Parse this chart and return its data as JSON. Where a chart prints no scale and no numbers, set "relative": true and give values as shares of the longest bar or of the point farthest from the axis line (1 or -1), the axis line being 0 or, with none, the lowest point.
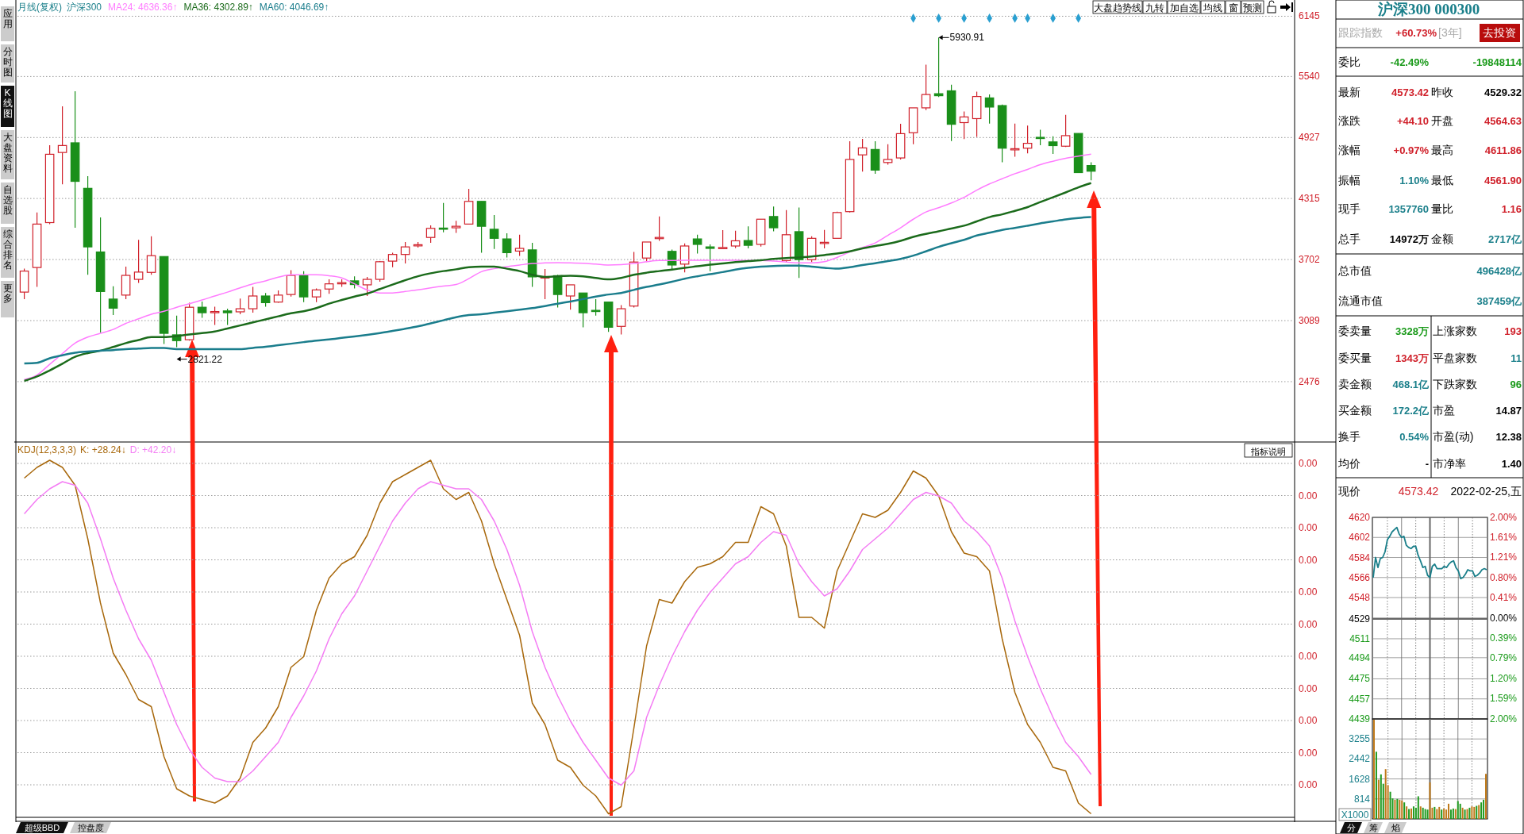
{
  "chart_data": [
    {
      "type": "candlestick",
      "title": "月线(复权)",
      "subtitle": "沪深300",
      "legend": "top left",
      "grid": "y",
      "categories": [
        null,
        null,
        null,
        null,
        null,
        null,
        null,
        null,
        null,
        null,
        null,
        null,
        null,
        null,
        null,
        null,
        null,
        null,
        null,
        null,
        null,
        null,
        null,
        null,
        null,
        null,
        null,
        null,
        null,
        null,
        null,
        null,
        null,
        null,
        null,
        null,
        null,
        null,
        null,
        null,
        null,
        null,
        null,
        null,
        null,
        null,
        null,
        null,
        null,
        null,
        null,
        null,
        null,
        null,
        null,
        null,
        null,
        null,
        null,
        null,
        null,
        null,
        null,
        null,
        null,
        null,
        null,
        null,
        null,
        null,
        null,
        null,
        null,
        null,
        null,
        null,
        null,
        null,
        null,
        null,
        null,
        null,
        null,
        null,
        null
      ],
      "ohlc": [
        [
          3375,
          3610,
          3305,
          3586
        ],
        [
          3622,
          4174,
          3427,
          4058
        ],
        [
          4073,
          4850,
          4058,
          4759
        ],
        [
          4777,
          5240,
          4457,
          4847
        ],
        [
          4874,
          5392,
          4021,
          4487
        ],
        [
          4417,
          4539,
          3549,
          3829
        ],
        [
          3778,
          4125,
          2970,
          3381
        ],
        [
          3305,
          3433,
          3144,
          3214
        ],
        [
          3345,
          3631,
          3305,
          3543
        ],
        [
          3503,
          3899,
          3467,
          3576
        ],
        [
          3573,
          3936,
          3549,
          3741
        ],
        [
          3732,
          3732,
          2854,
          2961
        ],
        [
          2946,
          3138,
          2821.22,
          2888
        ],
        [
          2897,
          3269,
          2888,
          3223
        ],
        [
          3223,
          3281,
          3116,
          3168
        ],
        [
          3174,
          3229,
          3046,
          3180
        ],
        [
          3186,
          3208,
          3046,
          3168
        ],
        [
          3177,
          3311,
          3153,
          3208
        ],
        [
          3208,
          3427,
          3168,
          3336
        ],
        [
          3336,
          3366,
          3229,
          3269
        ],
        [
          3275,
          3391,
          3269,
          3345
        ],
        [
          3351,
          3595,
          3330,
          3543
        ],
        [
          3540,
          3586,
          3275,
          3327
        ],
        [
          3327,
          3412,
          3275,
          3397
        ],
        [
          3406,
          3503,
          3357,
          3458
        ],
        [
          3464,
          3503,
          3427,
          3470
        ],
        [
          3488,
          3534,
          3412,
          3451
        ],
        [
          3448,
          3528,
          3336,
          3503
        ],
        [
          3503,
          3686,
          3479,
          3680
        ],
        [
          3686,
          3771,
          3625,
          3753
        ],
        [
          3753,
          3878,
          3662,
          3829
        ],
        [
          3848,
          3878,
          3823,
          3851
        ],
        [
          3924,
          4046,
          3869,
          4015
        ],
        [
          4018,
          4271,
          3976,
          4012
        ],
        [
          4021,
          4091,
          3970,
          4036
        ],
        [
          4058,
          4411,
          4058,
          4286
        ],
        [
          4286,
          4286,
          3771,
          4036
        ],
        [
          4006,
          4149,
          3808,
          3915
        ],
        [
          3909,
          3966,
          3723,
          3771
        ],
        [
          3787,
          3951,
          3738,
          3814
        ],
        [
          3799,
          3869,
          3427,
          3528
        ],
        [
          3522,
          3607,
          3305,
          3528
        ],
        [
          3540,
          3549,
          3220,
          3351
        ],
        [
          3336,
          3448,
          3199,
          3448
        ],
        [
          3366,
          3366,
          3022,
          3168
        ],
        [
          3192,
          3305,
          3138,
          3186
        ],
        [
          3275,
          3275,
          2976,
          3022
        ],
        [
          3031,
          3244,
          2949,
          3208
        ],
        [
          3235,
          3778,
          3220,
          3677
        ],
        [
          3717,
          3878,
          3677,
          3878
        ],
        [
          3918,
          4134,
          3890,
          3924
        ],
        [
          3784,
          3802,
          3595,
          3647
        ],
        [
          3656,
          3863,
          3573,
          3838
        ],
        [
          3909,
          3951,
          3762,
          3854
        ],
        [
          3829,
          3854,
          3586,
          3814
        ],
        [
          3817,
          3997,
          3814,
          3823
        ],
        [
          3838,
          3991,
          3817,
          3890
        ],
        [
          3893,
          4036,
          3814,
          3845
        ],
        [
          3854,
          4107,
          3833,
          4107
        ],
        [
          4134,
          4235,
          3985,
          4021
        ],
        [
          3692,
          4198,
          3671,
          3951
        ],
        [
          3982,
          4225,
          3518,
          3701
        ],
        [
          3701,
          3936,
          3677,
          3915
        ],
        [
          3872,
          4000,
          3814,
          3875
        ],
        [
          3915,
          4183,
          3915,
          4174
        ],
        [
          4183,
          4890,
          4174,
          4707
        ],
        [
          4753,
          4914,
          4585,
          4823
        ],
        [
          4807,
          4890,
          4564,
          4600
        ],
        [
          4676,
          4859,
          4655,
          4707
        ],
        [
          4722,
          5066,
          4707,
          4966
        ],
        [
          4975,
          5225,
          4859,
          5225
        ],
        [
          5225,
          5658,
          5202,
          5359
        ],
        [
          5367,
          5930.91,
          5333,
          5347
        ],
        [
          5396,
          5458,
          4891,
          5060
        ],
        [
          5077,
          5188,
          4911,
          5134
        ],
        [
          5117,
          5387,
          4934,
          5339
        ],
        [
          5325,
          5359,
          5068,
          5233
        ],
        [
          5248,
          5259,
          4678,
          4820
        ],
        [
          4809,
          5068,
          4735,
          4815
        ],
        [
          4820,
          5048,
          4769,
          4869
        ],
        [
          4929,
          5005,
          4849,
          4926
        ],
        [
          4883,
          4940,
          4763,
          4846
        ],
        [
          4840,
          5154,
          4832,
          4946
        ],
        [
          4968,
          4968,
          4575,
          4575
        ],
        [
          4646,
          4678,
          4498,
          4589
        ]
      ],
      "series": [
        {
          "type": "line",
          "name": "MA24: 4636.36↑",
          "color": "#ff7cff",
          "values": [
            2498,
            2543,
            2650,
            2757,
            2863,
            2924,
            2961,
            3000,
            3061,
            3107,
            3153,
            3183,
            3223,
            3259,
            3296,
            3336,
            3375,
            3418,
            3458,
            3488,
            3525,
            3549,
            3549,
            3549,
            3540,
            3518,
            3458,
            3397,
            3366,
            3366,
            3381,
            3397,
            3418,
            3436,
            3451,
            3510,
            3580,
            3610,
            3631,
            3647,
            3662,
            3668,
            3671,
            3668,
            3665,
            3656,
            3647,
            3650,
            3662,
            3680,
            3692,
            3692,
            3695,
            3695,
            3695,
            3695,
            3695,
            3692,
            3692,
            3686,
            3677,
            3668,
            3668,
            3680,
            3723,
            3778,
            3823,
            3869,
            3945,
            4021,
            4107,
            4180,
            4222,
            4270,
            4327,
            4399,
            4461,
            4513,
            4564,
            4607,
            4655,
            4689,
            4718,
            4740,
            4760
          ]
        },
        {
          "type": "line",
          "name": "MA36: 4302.89↑",
          "color": "#1b6b1b",
          "values": [
            2483,
            2528,
            2589,
            2656,
            2726,
            2763,
            2787,
            2824,
            2863,
            2894,
            2924,
            2924,
            2933,
            2949,
            2964,
            2979,
            3010,
            3040,
            3071,
            3101,
            3132,
            3162,
            3183,
            3214,
            3259,
            3296,
            3330,
            3360,
            3406,
            3451,
            3494,
            3534,
            3564,
            3586,
            3604,
            3625,
            3631,
            3631,
            3610,
            3586,
            3549,
            3528,
            3534,
            3540,
            3534,
            3518,
            3503,
            3518,
            3549,
            3570,
            3586,
            3601,
            3619,
            3634,
            3650,
            3662,
            3677,
            3686,
            3695,
            3708,
            3717,
            3723,
            3732,
            3747,
            3762,
            3784,
            3814,
            3838,
            3860,
            3890,
            3930,
            3960,
            3985,
            4014,
            4042,
            4085,
            4128,
            4156,
            4191,
            4228,
            4279,
            4327,
            4376,
            4427,
            4470
          ]
        },
        {
          "type": "line",
          "name": "MA60: 4046.69↑",
          "color": "#1a7d8c",
          "values": [
            2659,
            2665,
            2711,
            2741,
            2766,
            2778,
            2787,
            2793,
            2802,
            2808,
            2815,
            2815,
            2802,
            2802,
            2802,
            2802,
            2802,
            2802,
            2815,
            2827,
            2842,
            2857,
            2873,
            2888,
            2900,
            2915,
            2930,
            2946,
            2964,
            2985,
            3007,
            3031,
            3061,
            3092,
            3123,
            3145,
            3153,
            3168,
            3183,
            3199,
            3214,
            3235,
            3259,
            3281,
            3305,
            3330,
            3351,
            3366,
            3397,
            3427,
            3451,
            3479,
            3510,
            3534,
            3555,
            3576,
            3601,
            3619,
            3631,
            3637,
            3640,
            3640,
            3631,
            3619,
            3610,
            3625,
            3647,
            3665,
            3686,
            3708,
            3741,
            3784,
            3829,
            3866,
            3900,
            3943,
            3971,
            4000,
            4020,
            4042,
            4065,
            4085,
            4105,
            4119,
            4128
          ]
        },
        {
          "type": "scatter",
          "marker": "diamond",
          "color": "#2a9fd0",
          "values": [
            null,
            null,
            null,
            null,
            null,
            null,
            null,
            null,
            null,
            null,
            null,
            null,
            null,
            null,
            null,
            null,
            null,
            null,
            null,
            null,
            null,
            null,
            null,
            null,
            null,
            null,
            null,
            null,
            null,
            null,
            null,
            null,
            null,
            null,
            null,
            null,
            null,
            null,
            null,
            null,
            null,
            null,
            null,
            null,
            null,
            null,
            null,
            null,
            null,
            null,
            null,
            null,
            null,
            null,
            null,
            null,
            null,
            null,
            null,
            null,
            null,
            null,
            null,
            null,
            null,
            null,
            null,
            null,
            null,
            null,
            6125,
            null,
            6125,
            null,
            6125,
            null,
            6125,
            null,
            6125,
            6125,
            null,
            6125,
            null,
            6125,
            null
          ]
        }
      ],
      "ylim": [
        1870,
        6300
      ],
      "yticks": [
        6145,
        5540,
        4927,
        4315,
        3702,
        3089,
        2476
      ],
      "annotations": [
        "2821.22",
        "5930.91"
      ]
    },
    {
      "type": "line",
      "title": "KDJ(12,3,3,3)",
      "legend": "top left",
      "relative": true,
      "grid": true,
      "categories": [
        null,
        null,
        null,
        null,
        null,
        null,
        null,
        null,
        null,
        null,
        null,
        null,
        null,
        null,
        null,
        null,
        null,
        null,
        null,
        null,
        null,
        null,
        null,
        null,
        null,
        null,
        null,
        null,
        null,
        null,
        null,
        null,
        null,
        null,
        null,
        null,
        null,
        null,
        null,
        null,
        null,
        null,
        null,
        null,
        null,
        null,
        null,
        null,
        null,
        null,
        null,
        null,
        null,
        null,
        null,
        null,
        null,
        null,
        null,
        null,
        null,
        null,
        null,
        null,
        null,
        null,
        null,
        null,
        null,
        null,
        null,
        null,
        null,
        null,
        null,
        null,
        null,
        null,
        null,
        null,
        null,
        null,
        null,
        null,
        null
      ],
      "series": [
        {
          "name": "K: +28.24↓",
          "color": "#a8680c",
          "values": [
            0.95,
            0.98,
            1.0,
            0.98,
            0.93,
            0.78,
            0.6,
            0.46,
            0.4,
            0.33,
            0.31,
            0.17,
            0.08,
            0.06,
            0.05,
            0.04,
            0.06,
            0.11,
            0.21,
            0.25,
            0.31,
            0.42,
            0.45,
            0.58,
            0.67,
            0.71,
            0.73,
            0.79,
            0.88,
            0.94,
            0.96,
            0.98,
            1.0,
            0.92,
            0.89,
            0.91,
            0.83,
            0.71,
            0.61,
            0.51,
            0.32,
            0.26,
            0.16,
            0.14,
            0.09,
            0.06,
            0.01,
            0.03,
            0.25,
            0.48,
            0.61,
            0.6,
            0.66,
            0.7,
            0.71,
            0.73,
            0.77,
            0.77,
            0.87,
            0.85,
            0.76,
            0.56,
            0.56,
            0.53,
            0.69,
            0.77,
            0.85,
            0.84,
            0.86,
            0.91,
            0.97,
            0.95,
            0.9,
            0.8,
            0.74,
            0.73,
            0.69,
            0.5,
            0.35,
            0.26,
            0.21,
            0.14,
            0.13,
            0.04,
            0.01
          ]
        },
        {
          "name": "D: +42.20↓",
          "color": "#f47cf4",
          "values": [
            0.85,
            0.89,
            0.92,
            0.94,
            0.93,
            0.88,
            0.78,
            0.67,
            0.58,
            0.5,
            0.44,
            0.35,
            0.26,
            0.19,
            0.14,
            0.11,
            0.1,
            0.1,
            0.13,
            0.17,
            0.21,
            0.28,
            0.34,
            0.41,
            0.5,
            0.57,
            0.62,
            0.69,
            0.76,
            0.83,
            0.88,
            0.92,
            0.94,
            0.93,
            0.92,
            0.92,
            0.89,
            0.83,
            0.75,
            0.65,
            0.52,
            0.42,
            0.34,
            0.27,
            0.21,
            0.16,
            0.11,
            0.09,
            0.13,
            0.28,
            0.37,
            0.45,
            0.52,
            0.58,
            0.63,
            0.67,
            0.71,
            0.73,
            0.77,
            0.8,
            0.79,
            0.71,
            0.66,
            0.62,
            0.64,
            0.69,
            0.75,
            0.78,
            0.81,
            0.85,
            0.89,
            0.91,
            0.9,
            0.88,
            0.83,
            0.8,
            0.76,
            0.67,
            0.55,
            0.45,
            0.36,
            0.28,
            0.21,
            0.17,
            0.12
          ]
        }
      ],
      "annotations": [
        "0.00",
        "0.00",
        "0.00",
        "0.00",
        "0.00",
        "0.00",
        "0.00",
        "0.00",
        "0.00",
        "0.00",
        "0.00"
      ]
    },
    {
      "type": "other",
      "title": "沪深300 000300",
      "annotations": [
        "跟踪指数",
        "+60.73%",
        "[3年]",
        "去投资",
        "委比",
        "-42.49%",
        "-19848114",
        "最新",
        "4573.42",
        "昨收",
        "4529.32",
        "涨跌",
        "+44.10",
        "开盘",
        "4564.63",
        "涨幅",
        "+0.97%",
        "最高",
        "4611.86",
        "振幅",
        "1.10%",
        "最低",
        "4561.90",
        "现手",
        "1357760",
        "量比",
        "1.16",
        "总手",
        "14972万",
        "金额",
        "2717亿",
        "总市值",
        "496428亿",
        "流通市值",
        "387459亿",
        "委卖量",
        "3328万",
        "上涨家数",
        "193",
        "委买量",
        "1343万",
        "平盘家数",
        "11",
        "卖金额",
        "468.1亿",
        "下跌家数",
        "96",
        "买金额",
        "172.2亿",
        "市盈",
        "14.87",
        "换手",
        "0.54%",
        "市盈(动)",
        "12.38",
        "均价",
        "-",
        "市净率",
        "1.40",
        "现价",
        "4573.42",
        "2022-02-25,五"
      ]
    },
    {
      "type": "line",
      "grid": true,
      "categories": [
        null,
        null,
        null,
        null,
        null,
        null,
        null,
        null,
        null,
        null,
        null,
        null,
        null,
        null,
        null,
        null,
        null,
        null,
        null,
        null,
        null,
        null,
        null,
        null,
        null,
        null,
        null,
        null,
        null,
        null,
        null,
        null,
        null,
        null,
        null,
        null,
        null,
        null,
        null,
        null,
        null,
        null,
        null,
        null,
        null,
        null,
        null,
        null,
        null
      ],
      "ylim": [
        4439,
        4620
      ],
      "yticks": [
        4620,
        4602,
        4584,
        4566,
        4548,
        4529,
        4511,
        4494,
        4475,
        4457,
        4439
      ],
      "y2lim": [
        -2,
        2
      ],
      "y2ticks": [
        {
          "value": 2,
          "label": "2.00%"
        },
        {
          "value": 1.61,
          "label": "1.61%"
        },
        {
          "value": 1.21,
          "label": "1.21%"
        },
        {
          "value": 0.8,
          "label": "0.80%"
        },
        {
          "value": 0.41,
          "label": "0.41%"
        },
        {
          "value": 0,
          "label": "0.00%"
        },
        {
          "value": -0.39,
          "label": "0.39%"
        },
        {
          "value": -0.79,
          "label": "0.79%"
        },
        {
          "value": -1.2,
          "label": "1.20%"
        },
        {
          "value": -1.59,
          "label": "1.59%"
        },
        {
          "value": -2,
          "label": "2.00%"
        }
      ],
      "series": [
        {
          "color": "#1a7f8a",
          "values": [
            4566,
            4584,
            4575,
            4583,
            4584,
            4589,
            4600,
            4603,
            4607,
            4609,
            4611,
            4605,
            4602,
            4603,
            4595,
            4593,
            4592,
            4594,
            4594,
            4586,
            4581,
            4575,
            4576,
            4568,
            4566,
            4576,
            4578,
            4574,
            4574,
            4574,
            4576,
            4575,
            4578,
            4580,
            4581,
            4575,
            4572,
            4565,
            4566,
            4569,
            4573,
            4572,
            4572,
            4567,
            4568,
            4570,
            4573,
            4574,
            4573
          ]
        }
      ]
    },
    {
      "type": "bar",
      "grid": true,
      "ylabel": "X1000",
      "categories": [
        null,
        null,
        null,
        null,
        null,
        null,
        null,
        null,
        null,
        null,
        null,
        null,
        null,
        null,
        null,
        null,
        null,
        null,
        null,
        null,
        null,
        null,
        null,
        null,
        null,
        null,
        null,
        null,
        null,
        null,
        null,
        null,
        null,
        null,
        null,
        null,
        null,
        null,
        null,
        null,
        null,
        null,
        null,
        null,
        null,
        null,
        null,
        null,
        null
      ],
      "ylim": [
        0,
        4070
      ],
      "yticks": [
        814,
        1628,
        2442,
        3255
      ],
      "values": [
        4036,
        2734,
        1595,
        1812,
        1432,
        2029,
        1378,
        1107,
        835,
        781,
        814,
        781,
        749,
        673,
        510,
        401,
        423,
        510,
        456,
        922,
        510,
        456,
        401,
        380,
        1486,
        456,
        488,
        401,
        488,
        380,
        423,
        380,
        618,
        380,
        423,
        401,
        727,
        618,
        456,
        380,
        401,
        456,
        510,
        488,
        532,
        564,
        673,
        781,
        1834
      ],
      "colors": [
        "#c07a1a",
        "#1f9a1f",
        "#c07a1a",
        "#1f9a1f",
        "#1f9a1f",
        "#c07a1a",
        "#c07a1a",
        "#1f9a1f",
        "#1f9a1f",
        "#c07a1a",
        "#1f9a1f",
        "#c07a1a",
        "#c07a1a",
        "#1f9a1f",
        "#c07a1a",
        "#1f9a1f",
        "#c07a1a",
        "#1f9a1f",
        "#1f9a1f",
        "#1f9a1f",
        "#c07a1a",
        "#1f9a1f",
        "#1f9a1f",
        "#1f9a1f",
        "#c07a1a",
        "#c07a1a",
        "#1f9a1f",
        "#c07a1a",
        "#c07a1a",
        "#1f9a1f",
        "#c07a1a",
        "#c07a1a",
        "#c07a1a",
        "#1f9a1f",
        "#1f9a1f",
        "#c07a1a",
        "#1f9a1f",
        "#1f9a1f",
        "#c07a1a",
        "#1f9a1f",
        "#c07a1a",
        "#1f9a1f",
        "#c07a1a",
        "#c07a1a",
        "#1f9a1f",
        "#c07a1a",
        "#1f9a1f",
        "#1f9a1f",
        "#c07a1a"
      ]
    },
    {
      "type": "other",
      "annotations": [
        "应用",
        "分时图",
        "K线图",
        "大盘资料",
        "自选股",
        "综合排名",
        "更多",
        "大盘趋势线",
        "九转",
        "加自选",
        "均线",
        "窗",
        "预测",
        "指标说明",
        "超级BBD",
        "控盘度",
        "分",
        "筹",
        "焰"
      ]
    }
  ]
}
